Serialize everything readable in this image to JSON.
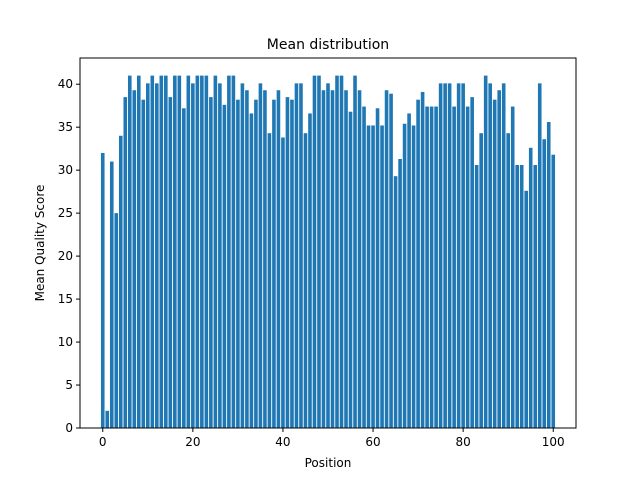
{
  "chart_data": {
    "type": "bar",
    "title": "Mean distribution",
    "xlabel": "Position",
    "ylabel": "Mean Quality Score",
    "xlim": [
      -5.05,
      105.05
    ],
    "ylim": [
      0,
      43.05
    ],
    "x_ticks": [
      0,
      20,
      40,
      60,
      80,
      100
    ],
    "y_ticks": [
      0,
      5,
      10,
      15,
      20,
      25,
      30,
      35,
      40
    ],
    "bar_color": "#1f77b4",
    "x": [
      0,
      1,
      2,
      3,
      4,
      5,
      6,
      7,
      8,
      9,
      10,
      11,
      12,
      13,
      14,
      15,
      16,
      17,
      18,
      19,
      20,
      21,
      22,
      23,
      24,
      25,
      26,
      27,
      28,
      29,
      30,
      31,
      32,
      33,
      34,
      35,
      36,
      37,
      38,
      39,
      40,
      41,
      42,
      43,
      44,
      45,
      46,
      47,
      48,
      49,
      50,
      51,
      52,
      53,
      54,
      55,
      56,
      57,
      58,
      59,
      60,
      61,
      62,
      63,
      64,
      65,
      66,
      67,
      68,
      69,
      70,
      71,
      72,
      73,
      74,
      75,
      76,
      77,
      78,
      79,
      80,
      81,
      82,
      83,
      84,
      85,
      86,
      87,
      88,
      89,
      90,
      91,
      92,
      93,
      94,
      95,
      96,
      97,
      98,
      99,
      100
    ],
    "values": [
      32,
      2,
      31,
      25,
      34,
      38.5,
      41,
      39.3,
      41,
      38.2,
      40.1,
      41,
      40.1,
      41,
      41,
      38.5,
      41,
      41,
      37.2,
      41,
      40.1,
      41,
      41,
      41,
      38.5,
      41,
      40.1,
      37.6,
      41,
      41,
      38.2,
      40.1,
      39.3,
      36.6,
      38.2,
      40.1,
      39.3,
      34.3,
      38.2,
      39.3,
      33.8,
      38.5,
      38.2,
      40.1,
      40.1,
      34.3,
      36.6,
      41,
      41,
      39.3,
      40.1,
      39.3,
      41,
      41,
      39.3,
      36.8,
      41,
      39.3,
      37.4,
      35.2,
      35.2,
      37.2,
      35.2,
      39.3,
      38.9,
      29.3,
      31.3,
      35.4,
      36.6,
      35.2,
      38.2,
      39.1,
      37.4,
      37.4,
      37.4,
      40.1,
      40.1,
      40.1,
      37.4,
      40.1,
      40.1,
      37.4,
      38.5,
      30.6,
      34.3,
      41,
      40.1,
      38.2,
      39.3,
      40.1,
      34.3,
      37.4,
      30.6,
      30.6,
      27.6,
      32.6,
      30.6,
      40.1,
      33.6,
      35.6,
      31.8
    ]
  }
}
